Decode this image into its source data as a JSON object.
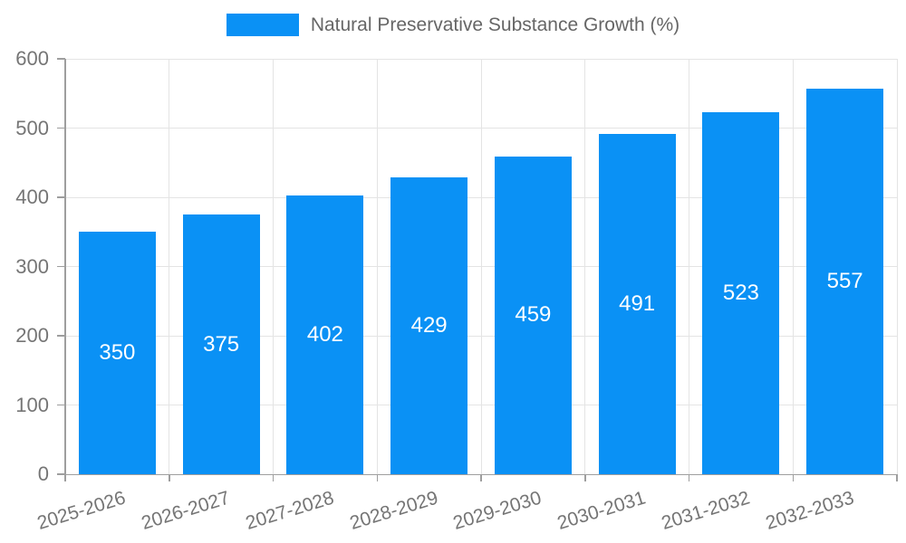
{
  "legend": {
    "label": "Natural Preservative Substance Growth (%)",
    "swatch_color": "#0a91f5"
  },
  "chart_data": {
    "type": "bar",
    "title": "Natural Preservative Substance Growth (%)",
    "categories": [
      "2025-2026",
      "2026-2027",
      "2027-2028",
      "2028-2029",
      "2029-2030",
      "2030-2031",
      "2031-2032",
      "2032-2033"
    ],
    "values": [
      350,
      375,
      402,
      429,
      459,
      491,
      523,
      557
    ],
    "value_labels": [
      "350",
      "375",
      "402",
      "429",
      "459",
      "491",
      "523",
      "557"
    ],
    "xlabel": "",
    "ylabel": "",
    "ylim": [
      0,
      600
    ],
    "yticks": [
      0,
      100,
      200,
      300,
      400,
      500,
      600
    ],
    "grid": true,
    "legend_position": "top-center",
    "bar_color": "#0a91f5",
    "value_label_color": "#ffffff",
    "grid_color": "#e4e4e4",
    "axis_color": "#9e9e9e",
    "tick_label_color": "#757575",
    "background_color": "#ffffff"
  }
}
